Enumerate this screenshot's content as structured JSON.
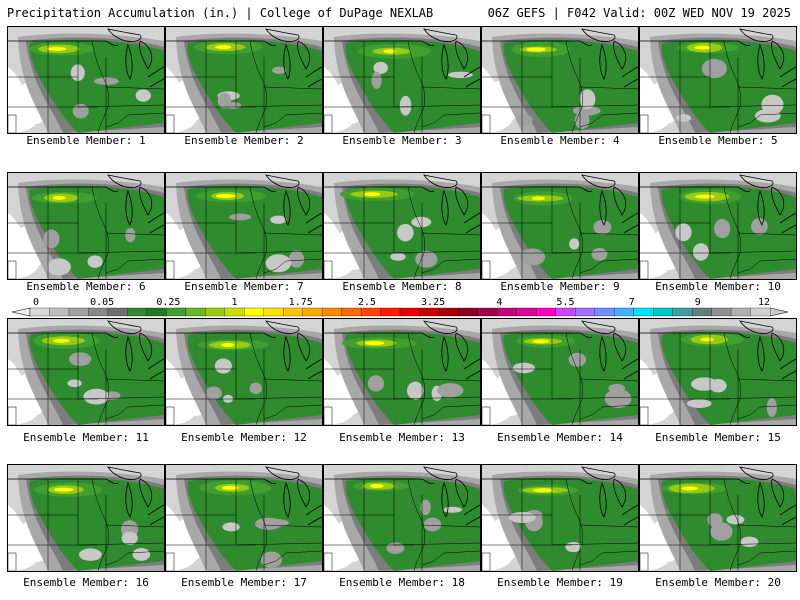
{
  "header": {
    "left": "Precipitation Accumulation (in.) | College of DuPage NEXLAB",
    "right": "06Z GEFS | F042 Valid: 00Z WED NOV 19 2025"
  },
  "member_label": "Ensemble Member:",
  "members": [
    {
      "id": "1"
    },
    {
      "id": "2"
    },
    {
      "id": "3"
    },
    {
      "id": "4"
    },
    {
      "id": "5"
    },
    {
      "id": "6"
    },
    {
      "id": "7"
    },
    {
      "id": "8"
    },
    {
      "id": "9"
    },
    {
      "id": "10"
    },
    {
      "id": "11"
    },
    {
      "id": "12"
    },
    {
      "id": "13"
    },
    {
      "id": "14"
    },
    {
      "id": "15"
    },
    {
      "id": "16"
    },
    {
      "id": "17"
    },
    {
      "id": "18"
    },
    {
      "id": "19"
    },
    {
      "id": "20"
    }
  ],
  "colorbar": {
    "labels": [
      "0",
      "0.05",
      "0.25",
      "1",
      "1.75",
      "2.5",
      "3.25",
      "4",
      "5.5",
      "7",
      "9",
      "12"
    ],
    "colors": [
      "#d9d9d9",
      "#bdbdbd",
      "#a3a3a3",
      "#8a8a8a",
      "#707070",
      "#2e8b2e",
      "#1f7a1f",
      "#3fa02f",
      "#66bb22",
      "#99cc11",
      "#ccdd00",
      "#ffff00",
      "#ffe000",
      "#ffc400",
      "#ffaa00",
      "#ff8800",
      "#ff6a00",
      "#ff4500",
      "#ff1a00",
      "#e60000",
      "#c80000",
      "#aa0000",
      "#900020",
      "#a0004a",
      "#c0007a",
      "#e000a0",
      "#ff00c8",
      "#d040ff",
      "#a070ff",
      "#7090ff",
      "#40b0ff",
      "#00e0ff",
      "#00c8c8",
      "#40a0a0",
      "#608080",
      "#909090",
      "#b0b0b0",
      "#d0d0d0"
    ]
  }
}
